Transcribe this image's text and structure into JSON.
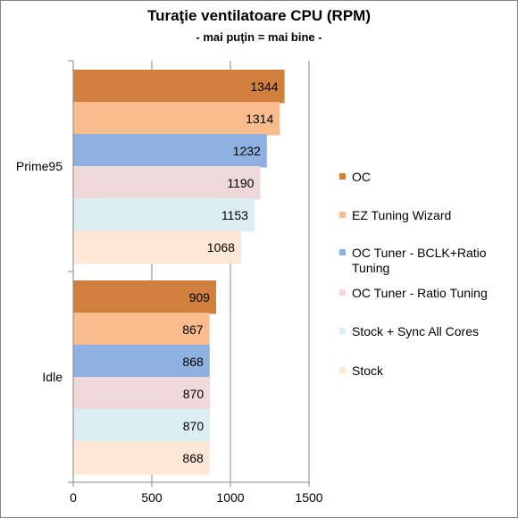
{
  "chart_data": {
    "type": "bar",
    "orientation": "horizontal",
    "title": "Turaţie ventilatoare CPU (RPM)",
    "subtitle": "- mai puţin = mai bine -",
    "categories": [
      "Prime95",
      "Idle"
    ],
    "series": [
      {
        "name": "OC",
        "color": "#d07f3d",
        "values": [
          1344,
          909
        ]
      },
      {
        "name": "EZ Tuning Wizard",
        "color": "#f9bc8d",
        "values": [
          1314,
          867
        ]
      },
      {
        "name": "OC Tuner - BCLK+Ratio Tuning",
        "color": "#8eb1e1",
        "values": [
          1232,
          868
        ]
      },
      {
        "name": "OC Tuner - Ratio Tuning",
        "color": "#efd9da",
        "values": [
          1190,
          870
        ]
      },
      {
        "name": "Stock + Sync All Cores",
        "color": "#dbeef2",
        "values": [
          1153,
          870
        ]
      },
      {
        "name": "Stock",
        "color": "#fde7d6",
        "values": [
          1068,
          868
        ]
      }
    ],
    "xlim": [
      0,
      1500
    ],
    "xticks": [
      0,
      500,
      1000,
      1500
    ],
    "grid": true,
    "legend": "right"
  }
}
